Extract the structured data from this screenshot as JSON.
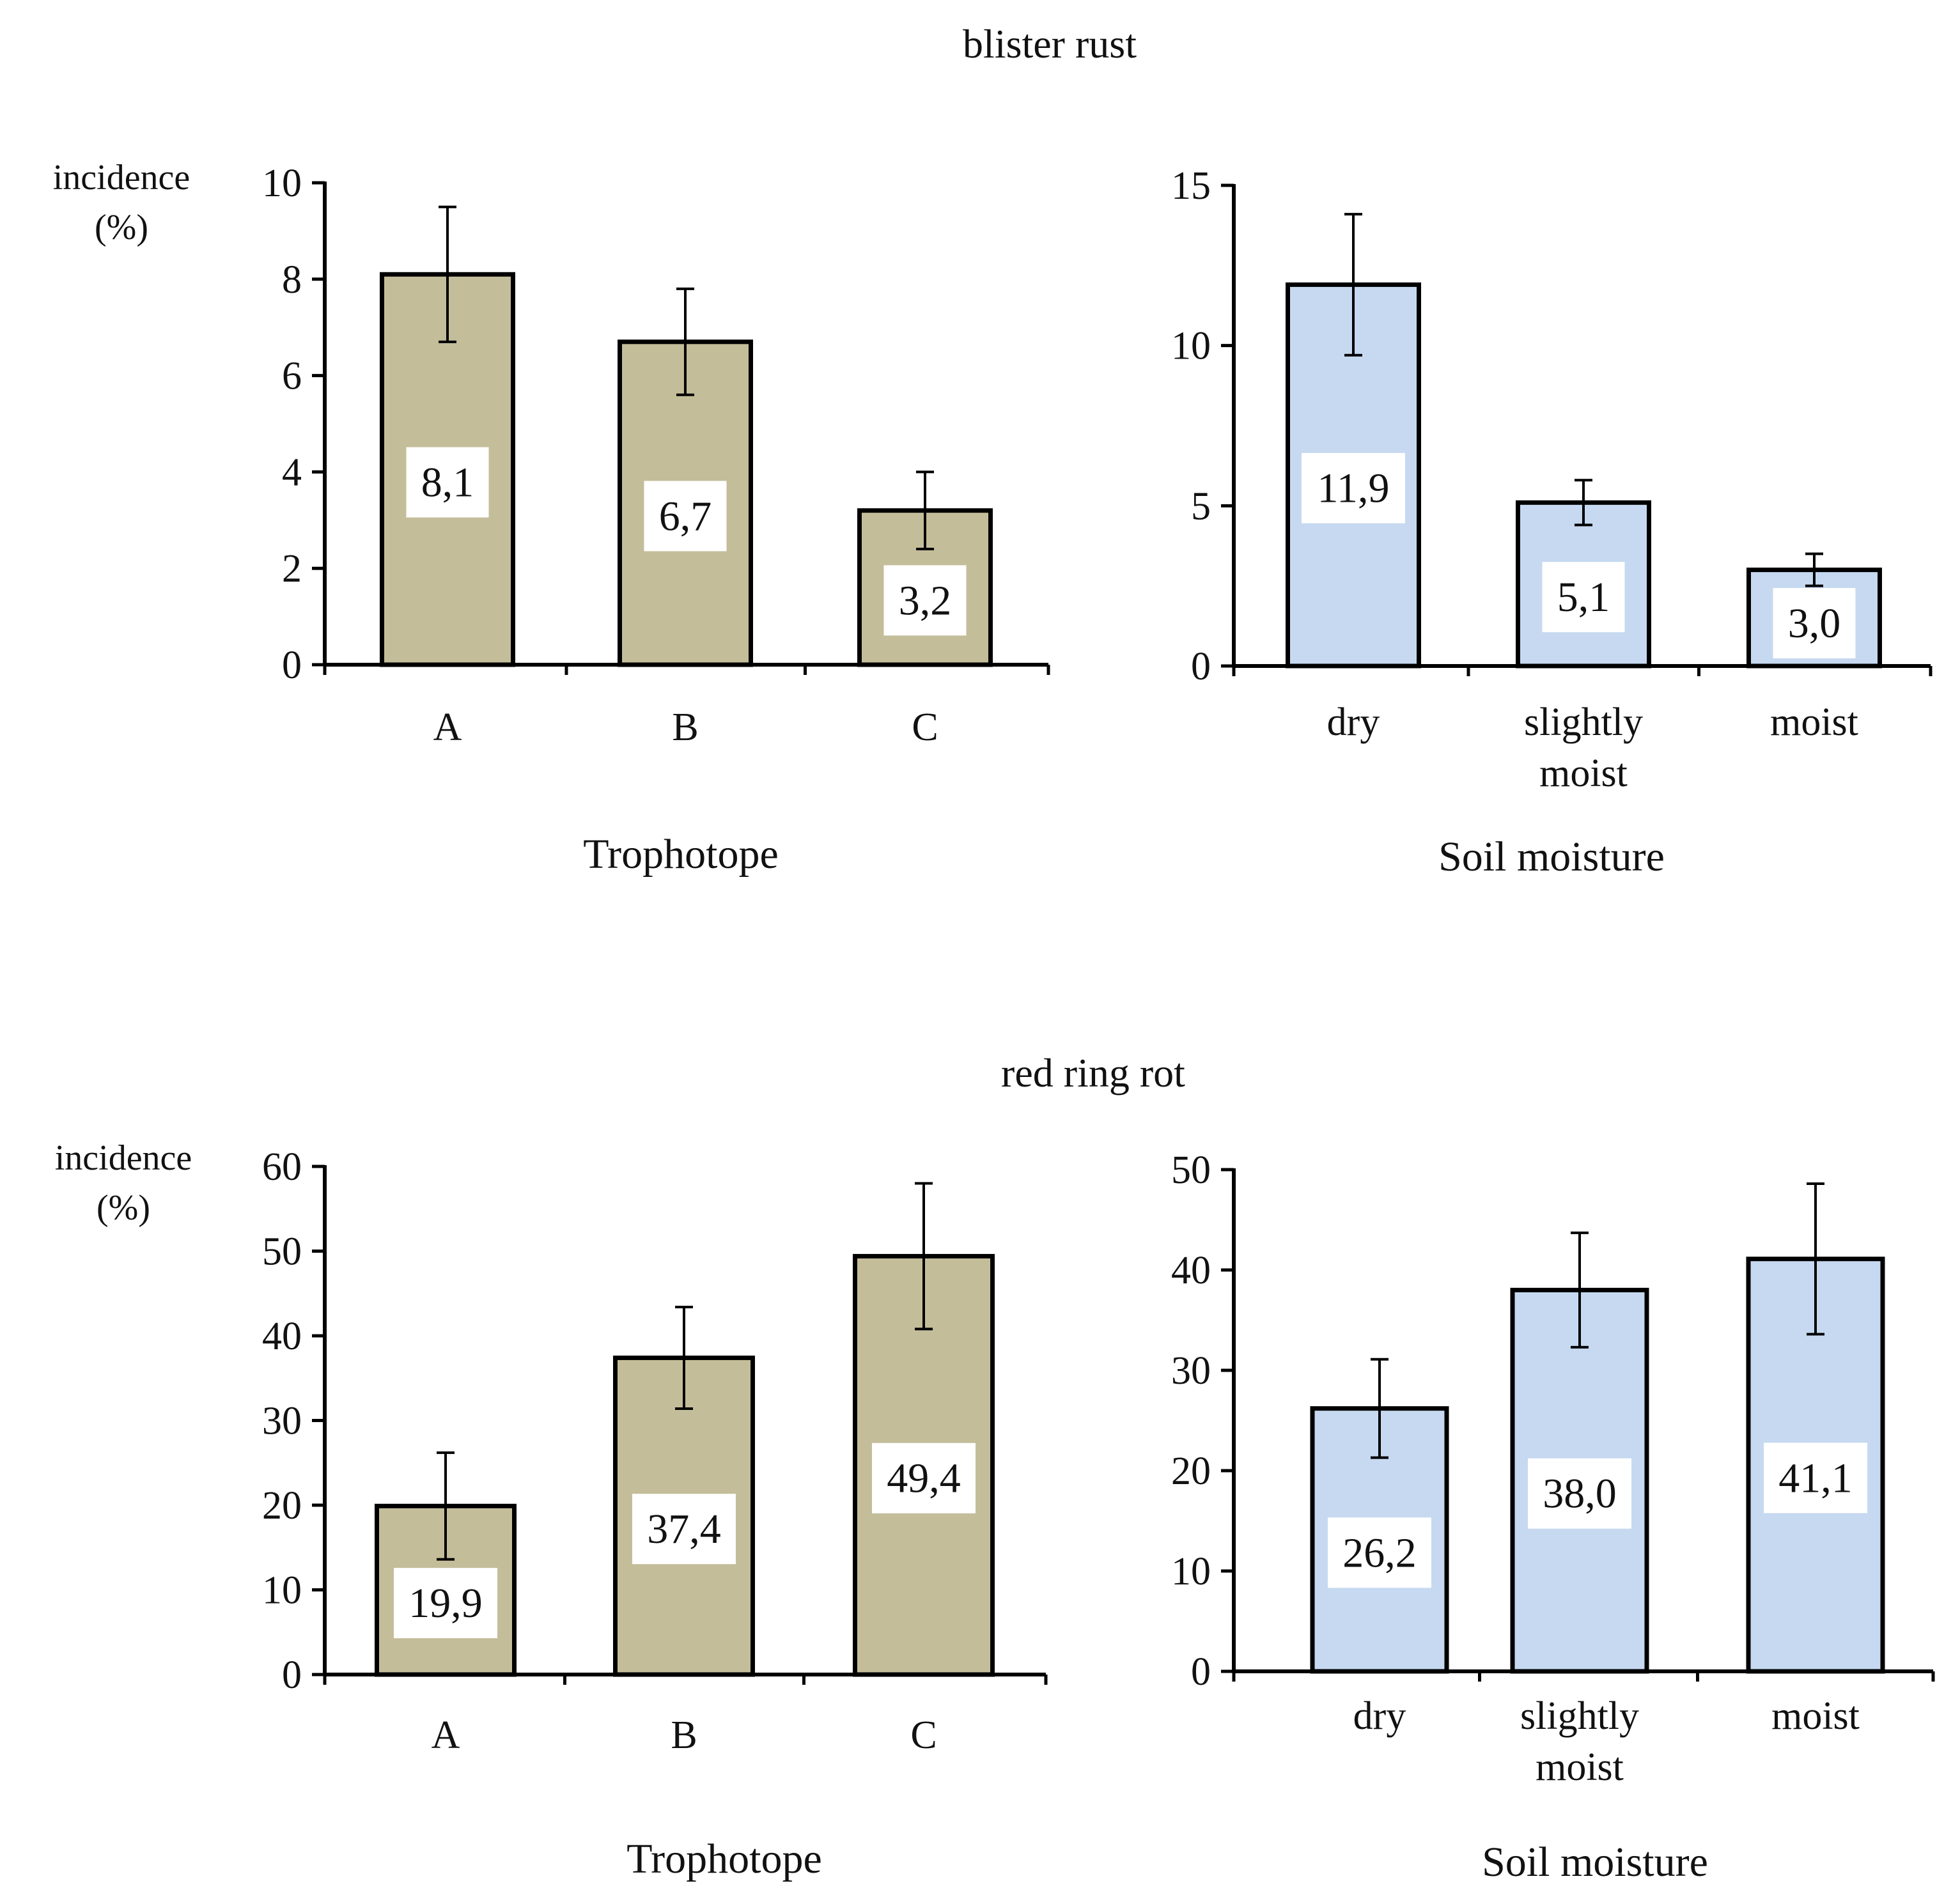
{
  "figure": {
    "titles": [
      "blister rust",
      "red ring rot"
    ],
    "y_label_line1": "incidence",
    "y_label_line2": "(%)",
    "colors": {
      "trophotope": "#c4bd9a",
      "soil_moisture": "#c6d9f0",
      "outline": "#000000",
      "label_box": "#ffffff"
    }
  },
  "chart_data": [
    {
      "id": "blister-rust-trophotope",
      "type": "bar",
      "section": "blister rust",
      "title": "blister rust",
      "xlabel": "Trophotope",
      "ylabel": "incidence (%)",
      "show_ylabel": true,
      "categories": [
        "A",
        "B",
        "C"
      ],
      "values": [
        8.1,
        6.7,
        3.2
      ],
      "value_labels": [
        "8,1",
        "6,7",
        "3,2"
      ],
      "errors": [
        1.4,
        1.1,
        0.8
      ],
      "ylim": [
        0,
        10
      ],
      "yticks": [
        0,
        2,
        4,
        6,
        8,
        10
      ],
      "color": "#c4bd9a",
      "grid": false
    },
    {
      "id": "blister-rust-soil",
      "type": "bar",
      "section": "blister rust",
      "title": "blister rust",
      "xlabel": "Soil moisture",
      "ylabel": "",
      "show_ylabel": false,
      "categories": [
        "dry",
        "slightly moist",
        "moist"
      ],
      "values": [
        11.9,
        5.1,
        3.0
      ],
      "value_labels": [
        "11,9",
        "5,1",
        "3,0"
      ],
      "errors": [
        2.2,
        0.7,
        0.5
      ],
      "ylim": [
        0,
        15
      ],
      "yticks": [
        0,
        5,
        10,
        15
      ],
      "color": "#c6d9f0",
      "grid": false
    },
    {
      "id": "red-ring-rot-trophotope",
      "type": "bar",
      "section": "red ring rot",
      "title": "red ring rot",
      "xlabel": "Trophotope",
      "ylabel": "incidence (%)",
      "show_ylabel": true,
      "categories": [
        "A",
        "B",
        "C"
      ],
      "values": [
        19.9,
        37.4,
        49.4
      ],
      "value_labels": [
        "19,9",
        "37,4",
        "49,4"
      ],
      "errors": [
        6.3,
        6.0,
        8.6
      ],
      "ylim": [
        0,
        60
      ],
      "yticks": [
        0,
        10,
        20,
        30,
        40,
        50,
        60
      ],
      "color": "#c4bd9a",
      "grid": false
    },
    {
      "id": "red-ring-rot-soil",
      "type": "bar",
      "section": "red ring rot",
      "title": "red ring rot",
      "xlabel": "Soil moisture",
      "ylabel": "",
      "show_ylabel": false,
      "categories": [
        "dry",
        "slightly moist",
        "moist"
      ],
      "values": [
        26.2,
        38.0,
        41.1
      ],
      "value_labels": [
        "26,2",
        "38,0",
        "41,1"
      ],
      "errors": [
        4.9,
        5.7,
        7.5
      ],
      "ylim": [
        0,
        50
      ],
      "yticks": [
        0,
        10,
        20,
        30,
        40,
        50
      ],
      "color": "#c6d9f0",
      "grid": false
    }
  ]
}
